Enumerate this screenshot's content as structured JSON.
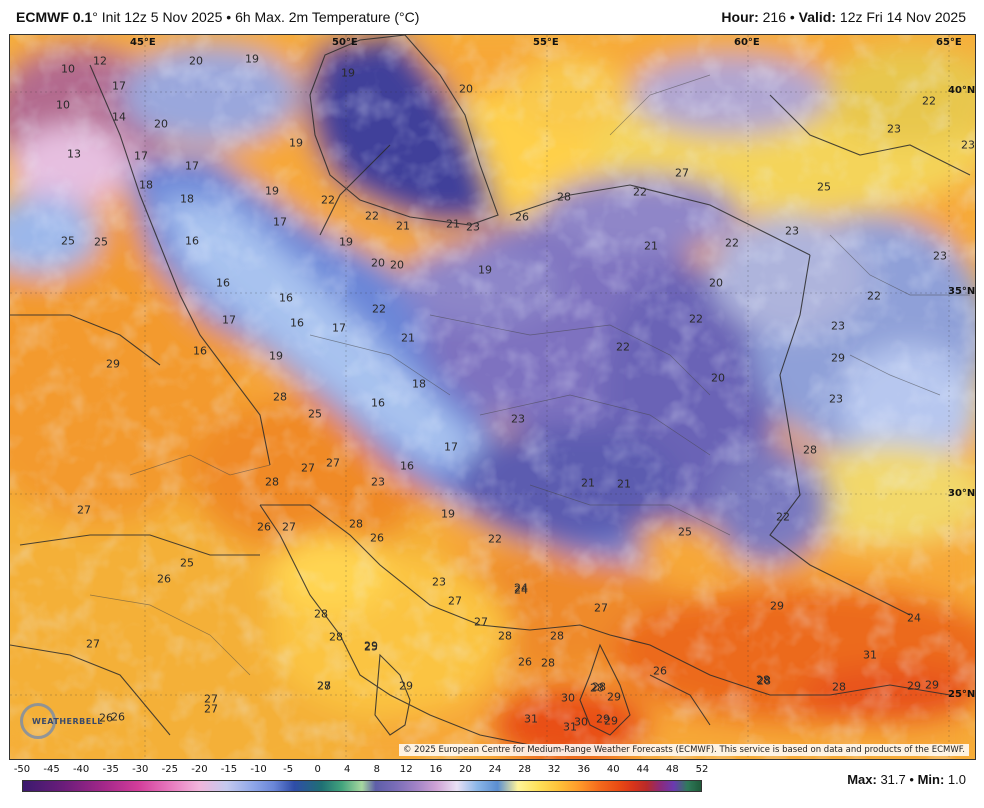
{
  "header": {
    "model": "ECMWF 0.1",
    "degree_sign": "°",
    "init": "Init 12z 5 Nov 2025",
    "separator": "•",
    "product": "6h Max. 2m Temperature (°C)",
    "hour_label": "Hour:",
    "hour_value": "216",
    "valid_label": "Valid:",
    "valid_value": "12z Fri 14 Nov 2025"
  },
  "coords": {
    "top": [
      "45°E",
      "50°E",
      "55°E",
      "60°E",
      "65°E"
    ],
    "right": [
      "40°N",
      "35°N",
      "30°N",
      "25°N"
    ]
  },
  "credit": "© 2025 European Centre for Medium-Range Weather Forecasts (ECMWF). This service is based on data and products of the ECMWF.",
  "logo": "WEATHERBELL",
  "scale": {
    "ticks": [
      "-50",
      "-45",
      "-40",
      "-35",
      "-30",
      "-25",
      "-20",
      "-15",
      "-10",
      "-5",
      "0",
      "4",
      "8",
      "12",
      "16",
      "20",
      "24",
      "28",
      "32",
      "36",
      "40",
      "44",
      "48",
      "52"
    ]
  },
  "stats": {
    "max_label": "Max:",
    "max_value": "31.7",
    "min_label": "Min:",
    "min_value": "1.0",
    "separator": "•"
  },
  "labels": [
    {
      "t": "10"
    },
    {
      "t": "12"
    },
    {
      "t": "20"
    },
    {
      "t": "19"
    },
    {
      "t": "19"
    },
    {
      "t": "20"
    },
    {
      "t": "10"
    },
    {
      "t": "17"
    },
    {
      "t": "14"
    },
    {
      "t": "20"
    },
    {
      "t": "13"
    },
    {
      "t": "19"
    },
    {
      "t": "17"
    },
    {
      "t": "17"
    },
    {
      "t": "18"
    },
    {
      "t": "18"
    },
    {
      "t": "19"
    },
    {
      "t": "22"
    },
    {
      "t": "22"
    },
    {
      "t": "21"
    },
    {
      "t": "21"
    },
    {
      "t": "23"
    },
    {
      "t": "26"
    },
    {
      "t": "28"
    },
    {
      "t": "22"
    },
    {
      "t": "27"
    },
    {
      "t": "25"
    },
    {
      "t": "23"
    },
    {
      "t": "22"
    },
    {
      "t": "23"
    },
    {
      "t": "25"
    },
    {
      "t": "25"
    },
    {
      "t": "16"
    },
    {
      "t": "17"
    },
    {
      "t": "19"
    },
    {
      "t": "20"
    },
    {
      "t": "20"
    },
    {
      "t": "19"
    },
    {
      "t": "21"
    },
    {
      "t": "22"
    },
    {
      "t": "20"
    },
    {
      "t": "23"
    },
    {
      "t": "23"
    },
    {
      "t": "16"
    },
    {
      "t": "16"
    },
    {
      "t": "17"
    },
    {
      "t": "16"
    },
    {
      "t": "17"
    },
    {
      "t": "22"
    },
    {
      "t": "21"
    },
    {
      "t": "22"
    },
    {
      "t": "22"
    },
    {
      "t": "23"
    },
    {
      "t": "22"
    },
    {
      "t": "29"
    },
    {
      "t": "16"
    },
    {
      "t": "19"
    },
    {
      "t": "18"
    },
    {
      "t": "20"
    },
    {
      "t": "29"
    },
    {
      "t": "28"
    },
    {
      "t": "25"
    },
    {
      "t": "16"
    },
    {
      "t": "23"
    },
    {
      "t": "23"
    },
    {
      "t": "28"
    },
    {
      "t": "17"
    },
    {
      "t": "24"
    },
    {
      "t": "16"
    },
    {
      "t": "27"
    },
    {
      "t": "27"
    },
    {
      "t": "23"
    },
    {
      "t": "21"
    },
    {
      "t": "21"
    },
    {
      "t": "28"
    },
    {
      "t": "27"
    },
    {
      "t": "28"
    },
    {
      "t": "26"
    },
    {
      "t": "26"
    },
    {
      "t": "27"
    },
    {
      "t": "19"
    },
    {
      "t": "22"
    },
    {
      "t": "25"
    },
    {
      "t": "22"
    },
    {
      "t": "25"
    },
    {
      "t": "26"
    },
    {
      "t": "23"
    },
    {
      "t": "24"
    },
    {
      "t": "27"
    },
    {
      "t": "27"
    },
    {
      "t": "28"
    },
    {
      "t": "29"
    },
    {
      "t": "28"
    },
    {
      "t": "29"
    },
    {
      "t": "24"
    },
    {
      "t": "29"
    },
    {
      "t": "27"
    },
    {
      "t": "28"
    },
    {
      "t": "25"
    },
    {
      "t": "28"
    },
    {
      "t": "28"
    },
    {
      "t": "30"
    },
    {
      "t": "28"
    },
    {
      "t": "26"
    },
    {
      "t": "31"
    },
    {
      "t": "27"
    },
    {
      "t": "29"
    },
    {
      "t": "30"
    },
    {
      "t": "28"
    },
    {
      "t": "26"
    },
    {
      "t": "29"
    },
    {
      "t": "28"
    },
    {
      "t": "29"
    },
    {
      "t": "29"
    },
    {
      "t": "27"
    },
    {
      "t": "27"
    },
    {
      "t": "27"
    },
    {
      "t": "26"
    },
    {
      "t": "26"
    },
    {
      "t": "31"
    },
    {
      "t": "31"
    },
    {
      "t": "29"
    },
    {
      "t": "28"
    },
    {
      "t": "28"
    },
    {
      "t": "28"
    }
  ]
}
